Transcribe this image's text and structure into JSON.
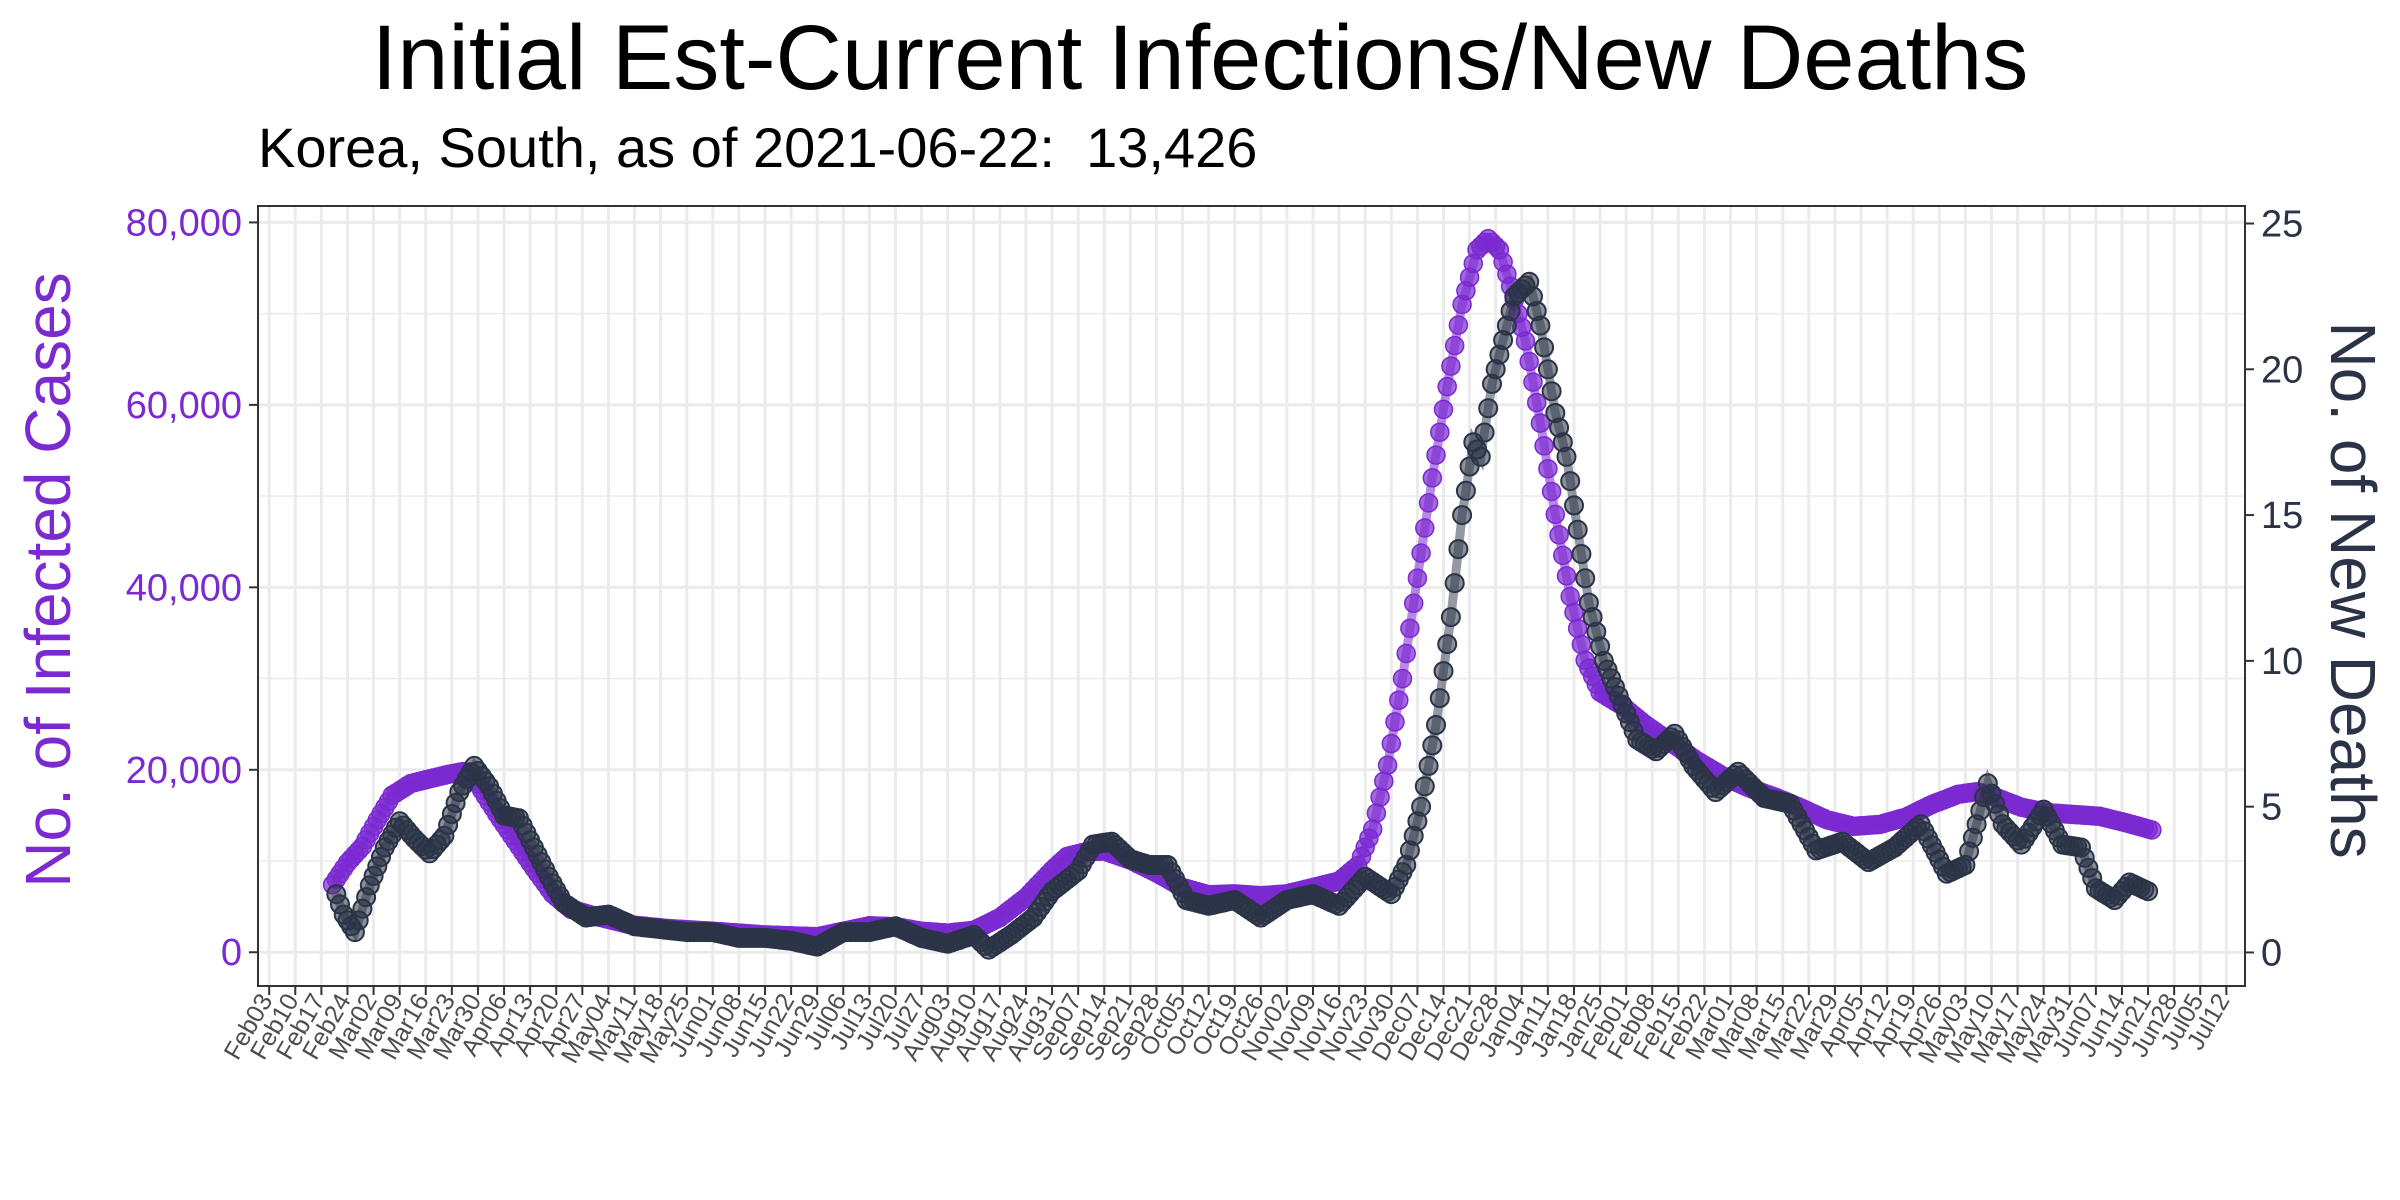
{
  "colors": {
    "infections": "#7b2ad1",
    "deaths": "#2b3447",
    "grid": "#ebebeb",
    "axis_text_left": "#7b2ad1",
    "axis_text_right": "#2b3447",
    "tick_label": "#4d4d4d"
  },
  "chart_data": {
    "type": "line",
    "title": "Initial Est-Current Infections/New Deaths",
    "subtitle": "Korea, South, as of 2021-06-22:  13,426",
    "ylabel": "No. of Infected Cases",
    "y2label": "No. of New Deaths",
    "ylim": [
      -3700,
      81800
    ],
    "y2lim": [
      -1.15,
      25.6
    ],
    "yticks": [
      0,
      20000,
      40000,
      60000,
      80000
    ],
    "ytick_labels": [
      "0",
      "20,000",
      "40,000",
      "60,000",
      "80,000"
    ],
    "y2ticks": [
      0,
      5,
      10,
      15,
      20,
      25
    ],
    "y2tick_labels": [
      "0",
      "5",
      "10",
      "15",
      "20",
      "25"
    ],
    "xlim": [
      "2020-01-31",
      "2021-07-17"
    ],
    "xtick_labels": [
      "Feb03",
      "Feb10",
      "Feb17",
      "Feb24",
      "Mar02",
      "Mar09",
      "Mar16",
      "Mar23",
      "Mar30",
      "Apr06",
      "Apr13",
      "Apr20",
      "Apr27",
      "May04",
      "May11",
      "May18",
      "May25",
      "Jun01",
      "Jun08",
      "Jun15",
      "Jun22",
      "Jun29",
      "Jul06",
      "Jul13",
      "Jul20",
      "Jul27",
      "Aug03",
      "Aug10",
      "Aug17",
      "Aug24",
      "Aug31",
      "Sep07",
      "Sep14",
      "Sep21",
      "Sep28",
      "Oct05",
      "Oct12",
      "Oct19",
      "Oct26",
      "Nov02",
      "Nov09",
      "Nov16",
      "Nov23",
      "Nov30",
      "Dec07",
      "Dec14",
      "Dec21",
      "Dec28",
      "Jan04",
      "Jan11",
      "Jan18",
      "Jan25",
      "Feb01",
      "Feb08",
      "Feb15",
      "Feb22",
      "Mar01",
      "Mar08",
      "Mar15",
      "Mar22",
      "Mar29",
      "Apr05",
      "Apr12",
      "Apr19",
      "Apr26",
      "May03",
      "May10",
      "May17",
      "May24",
      "May31",
      "Jun07",
      "Jun14",
      "Jun21",
      "Jun28",
      "Jul05",
      "Jul12"
    ],
    "xtick_start": "2020-02-03",
    "series": [
      {
        "name": "No. of Infected Cases",
        "axis": "left",
        "x_start": "2020-02-20",
        "x_end": "2021-06-22",
        "points": [
          [
            "2020-02-20",
            7400
          ],
          [
            "2020-02-24",
            9800
          ],
          [
            "2020-02-28",
            11600
          ],
          [
            "2020-03-03",
            14500
          ],
          [
            "2020-03-07",
            17200
          ],
          [
            "2020-03-12",
            18500
          ],
          [
            "2020-03-17",
            19000
          ],
          [
            "2020-03-22",
            19500
          ],
          [
            "2020-03-26",
            19800
          ],
          [
            "2020-03-30",
            18400
          ],
          [
            "2020-04-04",
            15200
          ],
          [
            "2020-04-09",
            12200
          ],
          [
            "2020-04-14",
            9200
          ],
          [
            "2020-04-19",
            6400
          ],
          [
            "2020-04-24",
            4700
          ],
          [
            "2020-05-01",
            3900
          ],
          [
            "2020-05-10",
            3000
          ],
          [
            "2020-05-20",
            2600
          ],
          [
            "2020-06-01",
            2300
          ],
          [
            "2020-06-15",
            1900
          ],
          [
            "2020-06-29",
            1700
          ],
          [
            "2020-07-06",
            2300
          ],
          [
            "2020-07-13",
            2900
          ],
          [
            "2020-07-20",
            2800
          ],
          [
            "2020-07-27",
            2300
          ],
          [
            "2020-08-03",
            2100
          ],
          [
            "2020-08-10",
            2400
          ],
          [
            "2020-08-17",
            3800
          ],
          [
            "2020-08-24",
            6000
          ],
          [
            "2020-08-31",
            9000
          ],
          [
            "2020-09-04",
            10500
          ],
          [
            "2020-09-09",
            11000
          ],
          [
            "2020-09-14",
            11100
          ],
          [
            "2020-09-21",
            10100
          ],
          [
            "2020-09-28",
            8700
          ],
          [
            "2020-10-05",
            7100
          ],
          [
            "2020-10-12",
            6300
          ],
          [
            "2020-10-19",
            6400
          ],
          [
            "2020-10-26",
            6200
          ],
          [
            "2020-11-02",
            6400
          ],
          [
            "2020-11-09",
            7100
          ],
          [
            "2020-11-16",
            7800
          ],
          [
            "2020-11-21",
            9500
          ],
          [
            "2020-11-25",
            13500
          ],
          [
            "2020-11-29",
            20500
          ],
          [
            "2020-12-03",
            30000
          ],
          [
            "2020-12-07",
            41000
          ],
          [
            "2020-12-11",
            52000
          ],
          [
            "2020-12-15",
            62000
          ],
          [
            "2020-12-19",
            71000
          ],
          [
            "2020-12-23",
            77000
          ],
          [
            "2020-12-26",
            78200
          ],
          [
            "2020-12-29",
            77000
          ],
          [
            "2021-01-01",
            73000
          ],
          [
            "2021-01-05",
            67000
          ],
          [
            "2021-01-09",
            58000
          ],
          [
            "2021-01-13",
            48000
          ],
          [
            "2021-01-17",
            39000
          ],
          [
            "2021-01-21",
            32000
          ],
          [
            "2021-01-25",
            28500
          ],
          [
            "2021-01-31",
            27000
          ],
          [
            "2021-02-06",
            25000
          ],
          [
            "2021-02-13",
            23000
          ],
          [
            "2021-02-20",
            21000
          ],
          [
            "2021-02-27",
            19300
          ],
          [
            "2021-03-06",
            18000
          ],
          [
            "2021-03-13",
            17000
          ],
          [
            "2021-03-20",
            15800
          ],
          [
            "2021-03-27",
            14500
          ],
          [
            "2021-04-03",
            13800
          ],
          [
            "2021-04-10",
            14000
          ],
          [
            "2021-04-17",
            14800
          ],
          [
            "2021-04-24",
            16200
          ],
          [
            "2021-05-01",
            17300
          ],
          [
            "2021-05-06",
            17600
          ],
          [
            "2021-05-11",
            17000
          ],
          [
            "2021-05-18",
            15900
          ],
          [
            "2021-05-25",
            15300
          ],
          [
            "2021-06-01",
            15100
          ],
          [
            "2021-06-08",
            14900
          ],
          [
            "2021-06-15",
            14200
          ],
          [
            "2021-06-22",
            13400
          ]
        ]
      },
      {
        "name": "No. of New Deaths",
        "axis": "right",
        "x_start": "2020-02-21",
        "x_end": "2021-06-21",
        "points": [
          [
            "2020-02-21",
            2.0
          ],
          [
            "2020-02-23",
            1.3
          ],
          [
            "2020-02-26",
            0.7
          ],
          [
            "2020-03-01",
            2.3
          ],
          [
            "2020-03-05",
            3.6
          ],
          [
            "2020-03-09",
            4.5
          ],
          [
            "2020-03-13",
            3.9
          ],
          [
            "2020-03-17",
            3.4
          ],
          [
            "2020-03-21",
            4.0
          ],
          [
            "2020-03-25",
            5.5
          ],
          [
            "2020-03-29",
            6.4
          ],
          [
            "2020-04-02",
            5.7
          ],
          [
            "2020-04-06",
            4.7
          ],
          [
            "2020-04-10",
            4.6
          ],
          [
            "2020-04-14",
            3.6
          ],
          [
            "2020-04-18",
            2.6
          ],
          [
            "2020-04-22",
            1.7
          ],
          [
            "2020-04-28",
            1.2
          ],
          [
            "2020-05-04",
            1.3
          ],
          [
            "2020-05-11",
            0.9
          ],
          [
            "2020-05-18",
            0.8
          ],
          [
            "2020-05-25",
            0.7
          ],
          [
            "2020-06-01",
            0.7
          ],
          [
            "2020-06-08",
            0.5
          ],
          [
            "2020-06-15",
            0.5
          ],
          [
            "2020-06-22",
            0.4
          ],
          [
            "2020-06-29",
            0.2
          ],
          [
            "2020-07-06",
            0.7
          ],
          [
            "2020-07-13",
            0.7
          ],
          [
            "2020-07-20",
            0.9
          ],
          [
            "2020-07-27",
            0.5
          ],
          [
            "2020-08-03",
            0.3
          ],
          [
            "2020-08-10",
            0.6
          ],
          [
            "2020-08-14",
            0.1
          ],
          [
            "2020-08-20",
            0.6
          ],
          [
            "2020-08-26",
            1.2
          ],
          [
            "2020-08-31",
            2.1
          ],
          [
            "2020-09-07",
            2.8
          ],
          [
            "2020-09-11",
            3.7
          ],
          [
            "2020-09-16",
            3.8
          ],
          [
            "2020-09-21",
            3.2
          ],
          [
            "2020-09-26",
            3.0
          ],
          [
            "2020-10-01",
            3.0
          ],
          [
            "2020-10-06",
            1.8
          ],
          [
            "2020-10-12",
            1.6
          ],
          [
            "2020-10-19",
            1.8
          ],
          [
            "2020-10-26",
            1.2
          ],
          [
            "2020-11-02",
            1.8
          ],
          [
            "2020-11-09",
            2.0
          ],
          [
            "2020-11-16",
            1.6
          ],
          [
            "2020-11-23",
            2.6
          ],
          [
            "2020-11-30",
            2.0
          ],
          [
            "2020-12-04",
            3.0
          ],
          [
            "2020-12-08",
            5.0
          ],
          [
            "2020-12-12",
            7.8
          ],
          [
            "2020-12-16",
            11.5
          ],
          [
            "2020-12-19",
            15.0
          ],
          [
            "2020-12-22",
            17.5
          ],
          [
            "2020-12-24",
            17.0
          ],
          [
            "2020-12-27",
            19.5
          ],
          [
            "2020-12-30",
            21.0
          ],
          [
            "2021-01-02",
            22.5
          ],
          [
            "2021-01-06",
            23.0
          ],
          [
            "2021-01-09",
            21.5
          ],
          [
            "2021-01-13",
            18.5
          ],
          [
            "2021-01-16",
            17.0
          ],
          [
            "2021-01-19",
            14.5
          ],
          [
            "2021-01-22",
            12.0
          ],
          [
            "2021-01-26",
            10.0
          ],
          [
            "2021-01-30",
            8.8
          ],
          [
            "2021-02-04",
            7.3
          ],
          [
            "2021-02-09",
            6.9
          ],
          [
            "2021-02-14",
            7.5
          ],
          [
            "2021-02-19",
            6.4
          ],
          [
            "2021-02-25",
            5.5
          ],
          [
            "2021-03-03",
            6.2
          ],
          [
            "2021-03-10",
            5.3
          ],
          [
            "2021-03-17",
            5.1
          ],
          [
            "2021-03-24",
            3.5
          ],
          [
            "2021-03-31",
            3.8
          ],
          [
            "2021-04-07",
            3.1
          ],
          [
            "2021-04-14",
            3.6
          ],
          [
            "2021-04-21",
            4.4
          ],
          [
            "2021-04-28",
            2.7
          ],
          [
            "2021-05-03",
            3.0
          ],
          [
            "2021-05-09",
            5.8
          ],
          [
            "2021-05-13",
            4.4
          ],
          [
            "2021-05-18",
            3.7
          ],
          [
            "2021-05-24",
            4.9
          ],
          [
            "2021-05-29",
            3.7
          ],
          [
            "2021-06-03",
            3.6
          ],
          [
            "2021-06-07",
            2.2
          ],
          [
            "2021-06-12",
            1.8
          ],
          [
            "2021-06-16",
            2.4
          ],
          [
            "2021-06-21",
            2.1
          ]
        ]
      }
    ],
    "grid": true,
    "legend": "none"
  }
}
